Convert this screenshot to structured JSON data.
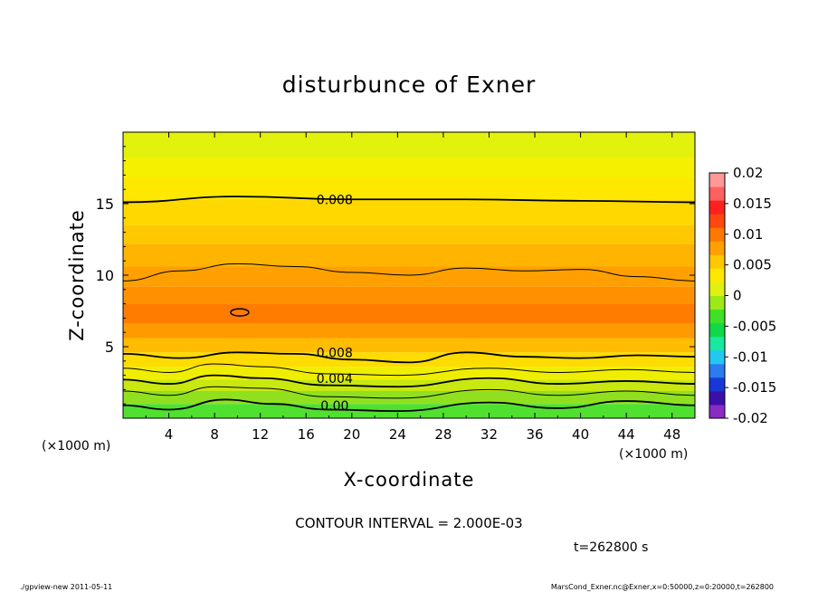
{
  "chart_data": {
    "type": "heatmap",
    "title": "disturbunce of Exner",
    "xlabel": "X-coordinate",
    "ylabel": "Z-coordinate",
    "x_unit_left": "(×1000 m)",
    "x_unit_right": "(×1000 m)",
    "xlim": [
      0,
      50
    ],
    "ylim": [
      0,
      20
    ],
    "x_ticks": [
      4,
      8,
      12,
      16,
      20,
      24,
      28,
      32,
      36,
      40,
      44,
      48
    ],
    "y_ticks": [
      5,
      10,
      15
    ],
    "colorbar": {
      "ticks": [
        "0.02",
        "0.015",
        "0.01",
        "0.005",
        "0",
        "-0.005",
        "-0.01",
        "-0.015",
        "-0.02"
      ],
      "range": [
        -0.02,
        0.02
      ],
      "colors": [
        "#8a2cc4",
        "#3a10a8",
        "#1838d8",
        "#2a7cf0",
        "#22c8f0",
        "#18e8a0",
        "#10d848",
        "#40e028",
        "#9ce818",
        "#e0f010",
        "#ffe800",
        "#ffc800",
        "#ffa000",
        "#ff7800",
        "#ff4810",
        "#ff2020",
        "#ff6060",
        "#ff9898"
      ]
    },
    "contour_labels": [
      {
        "text": "0.008",
        "x": 18.5,
        "z": 15.3
      },
      {
        "text": "0.008",
        "x": 18.5,
        "z": 4.6
      },
      {
        "text": "0.004",
        "x": 18.5,
        "z": 2.8
      },
      {
        "text": "0.00",
        "x": 18.5,
        "z": 0.9
      }
    ],
    "contours": [
      {
        "value": 0.008,
        "points": [
          [
            0,
            15.1
          ],
          [
            10,
            15.5
          ],
          [
            20,
            15.3
          ],
          [
            30,
            15.3
          ],
          [
            40,
            15.2
          ],
          [
            50,
            15.1
          ]
        ]
      },
      {
        "value": 0.01,
        "points": [
          [
            0,
            9.6
          ],
          [
            5,
            10.3
          ],
          [
            10,
            10.8
          ],
          [
            15,
            10.6
          ],
          [
            20,
            10.2
          ],
          [
            25,
            10.0
          ],
          [
            30,
            10.5
          ],
          [
            35,
            10.3
          ],
          [
            40,
            10.4
          ],
          [
            45,
            9.9
          ],
          [
            50,
            9.6
          ]
        ]
      },
      {
        "value": 0.008,
        "points": [
          [
            0,
            4.5
          ],
          [
            5,
            4.2
          ],
          [
            10,
            4.6
          ],
          [
            15,
            4.5
          ],
          [
            20,
            4.1
          ],
          [
            25,
            3.9
          ],
          [
            30,
            4.6
          ],
          [
            35,
            4.3
          ],
          [
            40,
            4.2
          ],
          [
            45,
            4.4
          ],
          [
            50,
            4.3
          ]
        ]
      },
      {
        "value": 0.006,
        "points": [
          [
            0,
            3.5
          ],
          [
            4,
            3.2
          ],
          [
            8,
            3.8
          ],
          [
            12,
            3.6
          ],
          [
            18,
            3.1
          ],
          [
            24,
            3.0
          ],
          [
            32,
            3.5
          ],
          [
            38,
            3.2
          ],
          [
            44,
            3.4
          ],
          [
            50,
            3.2
          ]
        ]
      },
      {
        "value": 0.004,
        "points": [
          [
            0,
            2.7
          ],
          [
            4,
            2.4
          ],
          [
            8,
            3.0
          ],
          [
            12,
            2.8
          ],
          [
            18,
            2.3
          ],
          [
            24,
            2.2
          ],
          [
            32,
            2.8
          ],
          [
            38,
            2.4
          ],
          [
            44,
            2.6
          ],
          [
            50,
            2.4
          ]
        ]
      },
      {
        "value": 0.002,
        "points": [
          [
            0,
            1.9
          ],
          [
            4,
            1.6
          ],
          [
            8,
            2.2
          ],
          [
            12,
            2.1
          ],
          [
            18,
            1.5
          ],
          [
            24,
            1.4
          ],
          [
            32,
            2.0
          ],
          [
            38,
            1.6
          ],
          [
            44,
            1.9
          ],
          [
            50,
            1.6
          ]
        ]
      },
      {
        "value": 0.0,
        "points": [
          [
            0,
            0.9
          ],
          [
            4,
            0.6
          ],
          [
            9,
            1.3
          ],
          [
            13,
            1.0
          ],
          [
            18,
            0.6
          ],
          [
            24,
            0.5
          ],
          [
            32,
            1.1
          ],
          [
            38,
            0.7
          ],
          [
            44,
            1.2
          ],
          [
            50,
            0.9
          ]
        ]
      }
    ],
    "closed_contour": {
      "x": 10.2,
      "z": 7.4
    },
    "bands": [
      {
        "z0": 18.2,
        "z1": 20,
        "color": "#e2f20c"
      },
      {
        "z0": 16.8,
        "z1": 18.2,
        "color": "#f4f000"
      },
      {
        "z0": 15.3,
        "z1": 16.8,
        "color": "#ffe800"
      },
      {
        "z0": 13.5,
        "z1": 15.3,
        "color": "#ffd800"
      },
      {
        "z0": 12.2,
        "z1": 13.5,
        "color": "#ffc800"
      },
      {
        "z0": 10.6,
        "z1": 12.2,
        "color": "#ffb400"
      },
      {
        "z0": 9.2,
        "z1": 10.6,
        "color": "#ffa000"
      },
      {
        "z0": 8.0,
        "z1": 9.2,
        "color": "#ff9000"
      },
      {
        "z0": 6.6,
        "z1": 8.0,
        "color": "#ff7c00"
      },
      {
        "z0": 5.6,
        "z1": 6.6,
        "color": "#ff9a00"
      },
      {
        "z0": 4.6,
        "z1": 5.6,
        "color": "#ffbc00"
      },
      {
        "z0": 3.6,
        "z1": 4.6,
        "color": "#ffdc00"
      },
      {
        "z0": 2.7,
        "z1": 3.6,
        "color": "#f0ee00"
      },
      {
        "z0": 1.9,
        "z1": 2.7,
        "color": "#c8e810"
      },
      {
        "z0": 1.0,
        "z1": 1.9,
        "color": "#90e020"
      },
      {
        "z0": 0.0,
        "z1": 1.0,
        "color": "#50e030"
      }
    ]
  },
  "footer": {
    "contour_interval": "CONTOUR INTERVAL = 2.000E-03",
    "time": "t=262800 s",
    "left_note": "./gpview-new  2011-05-11",
    "right_note": "MarsCond_Exner.nc@Exner,x=0:50000,z=0:20000,t=262800"
  }
}
